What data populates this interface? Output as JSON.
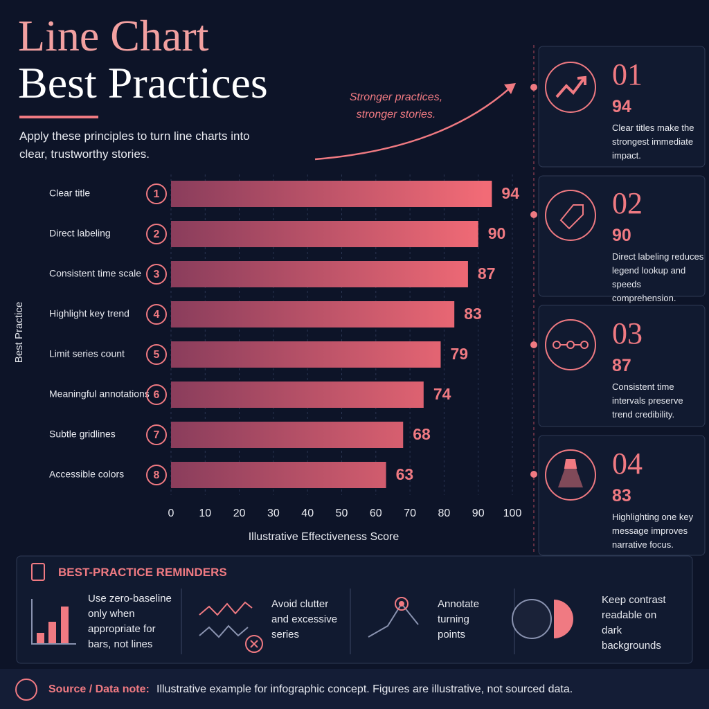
{
  "header": {
    "title_line1": "Line Chart",
    "title_line2": "Best Practices",
    "subtitle": "Apply these principles to turn line charts into clear, trustworthy stories."
  },
  "annotation": "Stronger practices, stronger stories.",
  "chart_data": {
    "type": "bar",
    "orientation": "horizontal",
    "categories": [
      "Clear title",
      "Direct labeling",
      "Consistent time scale",
      "Highlight key trend",
      "Limit series count",
      "Meaningful annotations",
      "Subtle gridlines",
      "Accessible colors"
    ],
    "ranks": [
      "1",
      "2",
      "3",
      "4",
      "5",
      "6",
      "7",
      "8"
    ],
    "values": [
      94,
      90,
      87,
      83,
      79,
      74,
      68,
      63
    ],
    "color": "#f26b76",
    "xlim": [
      0,
      100
    ],
    "xticks": [
      0,
      10,
      20,
      30,
      40,
      50,
      60,
      70,
      80,
      90,
      100
    ],
    "xlabel": "Illustrative Effectiveness Score",
    "ylabel": "Best Practice",
    "grid": true
  },
  "cards": [
    {
      "number": "01",
      "value": 94,
      "text": "Clear titles make the strongest immediate impact."
    },
    {
      "number": "02",
      "value": 90,
      "text": "Direct labeling reduces legend lookup and speeds comprehension."
    },
    {
      "number": "03",
      "value": 87,
      "text": "Consistent time intervals preserve trend credibility."
    },
    {
      "number": "04",
      "value": 83,
      "text": "Highlighting one key message improves narrative focus."
    }
  ],
  "reminders": {
    "title": "BEST-PRACTICE REMINDERS",
    "items": [
      "Use zero-baseline only when appropriate for bars, not lines",
      "Avoid clutter and excessive series",
      "Annotate turning points",
      "Keep contrast readable on dark backgrounds"
    ]
  },
  "footer": {
    "label": "Source / Data note:",
    "text": "Illustrative example for infographic concept. Figures are illustrative, not sourced data."
  }
}
